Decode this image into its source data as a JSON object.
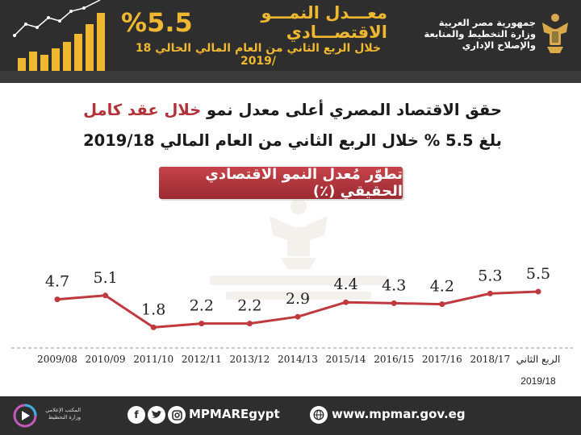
{
  "header": {
    "headline_rate": "%5.5",
    "headline_title": "معـــدل النمـــو الاقتصـــادي",
    "headline_sub": "خلال الربع الثاني من العام المالي الحالي 18 /2019",
    "gov_lines": [
      "جمهورية مصر العربية",
      "وزارة التخطيط والمتابعة",
      "والإصلاح الإداري"
    ],
    "accent_color": "#f0b830",
    "background_color": "#2e2e2e"
  },
  "intro": {
    "line1_prefix": "حقق الاقتصاد المصري أعلى معدل نمو ",
    "line1_highlight": "خلال عقد كامل",
    "line2": "بلغ 5.5 % خلال الربع الثاني من العام المالي 2019/18",
    "highlight_color": "#b3323a"
  },
  "section": {
    "ribbon_label": "تطوّر مُعدل النمو الاقتصادي الحقيقي (٪)",
    "ribbon_color": "#b3323a"
  },
  "chart_data": {
    "type": "line",
    "title": "تطوّر مُعدل النمو الاقتصادي الحقيقي (٪)",
    "xlabel": "",
    "ylabel": "",
    "categories": [
      "2009/08",
      "2010/09",
      "2011/10",
      "2012/11",
      "2013/12",
      "2014/13",
      "2015/14",
      "2016/15",
      "2017/16",
      "2018/17",
      "الربع الثاني 2019/18"
    ],
    "category_lines": [
      [
        "2009/08"
      ],
      [
        "2010/09"
      ],
      [
        "2011/10"
      ],
      [
        "2012/11"
      ],
      [
        "2013/12"
      ],
      [
        "2014/13"
      ],
      [
        "2015/14"
      ],
      [
        "2016/15"
      ],
      [
        "2017/16"
      ],
      [
        "2018/17"
      ],
      [
        "الربع الثاني"
      ]
    ],
    "values": [
      4.7,
      5.1,
      1.8,
      2.2,
      2.2,
      2.9,
      4.4,
      4.3,
      4.2,
      5.3,
      5.5
    ],
    "value_labels": [
      "4.7",
      "5.1",
      "1.8",
      "2.2",
      "2.2",
      "2.9",
      "4.4",
      "4.3",
      "4.2",
      "5.3",
      "5.5"
    ],
    "ylim": [
      0,
      7
    ],
    "grid": false,
    "line_color": "#c0393f"
  },
  "chart_extra": {
    "last_year_line2": "2019/18"
  },
  "footer": {
    "office_text": "المكتب الإعلامي وزارة التخطيط",
    "social_icons": [
      "facebook-icon",
      "twitter-icon",
      "instagram-icon"
    ],
    "social_handle": "MPMAREgypt",
    "website": "www.mpmar.gov.eg"
  }
}
